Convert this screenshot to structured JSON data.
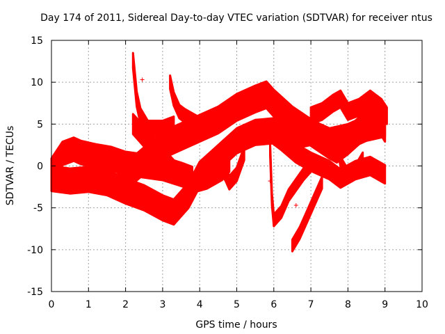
{
  "chart_data": {
    "type": "scatter",
    "title": "Day 174 of 2011, Sidereal Day-to-day VTEC variation (SDTVAR) for receiver ntus",
    "xlabel": "GPS time / hours",
    "ylabel": "SDTVAR / TECUs",
    "xlim": [
      0,
      10
    ],
    "ylim": [
      -15,
      15
    ],
    "xticks": [
      "0",
      "1",
      "2",
      "3",
      "4",
      "5",
      "6",
      "7",
      "8",
      "9",
      "10"
    ],
    "yticks": [
      "15",
      "10",
      "5",
      "0",
      "-5",
      "-10",
      "-15"
    ],
    "grid": true,
    "marker": "+",
    "colors": {
      "series": "#ff0000",
      "axis": "#000000",
      "grid": "#a0a0a0"
    },
    "series": [
      {
        "name": "",
        "bands": [
          {
            "points": [
              [
                0,
                -0.5
              ],
              [
                0.3,
                1.5
              ],
              [
                0.6,
                2.0
              ],
              [
                0.8,
                1.6
              ],
              [
                1.2,
                1.2
              ],
              [
                1.6,
                0.9
              ],
              [
                2.0,
                0.3
              ],
              [
                2.5,
                0.0
              ],
              [
                3.0,
                -0.3
              ],
              [
                3.5,
                -1.0
              ],
              [
                3.8,
                -1.5
              ]
            ],
            "half": 1.4
          },
          {
            "points": [
              [
                0,
                -1.5
              ],
              [
                0.5,
                -1.8
              ],
              [
                1.0,
                -1.6
              ],
              [
                1.5,
                -2.0
              ],
              [
                2.0,
                -3.0
              ],
              [
                2.5,
                -3.8
              ],
              [
                3.0,
                -5.0
              ],
              [
                3.3,
                -5.5
              ],
              [
                3.7,
                -3.5
              ],
              [
                4.0,
                -1.0
              ],
              [
                4.5,
                1.0
              ],
              [
                5.0,
                3.0
              ],
              [
                5.5,
                4.0
              ],
              [
                6.0,
                4.2
              ],
              [
                6.5,
                3.5
              ],
              [
                7.0,
                4.0
              ],
              [
                7.5,
                3.0
              ],
              [
                8.0,
                3.5
              ],
              [
                8.5,
                4.5
              ],
              [
                9.0,
                5.0
              ]
            ],
            "half": 1.5
          },
          {
            "points": [
              [
                1.8,
                -1.5
              ],
              [
                2.2,
                -0.5
              ],
              [
                2.6,
                1.0
              ],
              [
                3.0,
                2.5
              ],
              [
                3.5,
                3.5
              ],
              [
                4.0,
                4.5
              ],
              [
                4.5,
                5.5
              ],
              [
                5.0,
                7.0
              ],
              [
                5.5,
                8.0
              ],
              [
                5.8,
                8.5
              ],
              [
                6.0,
                7.5
              ],
              [
                6.5,
                5.5
              ],
              [
                7.0,
                4.0
              ],
              [
                7.5,
                2.5
              ],
              [
                7.7,
                2.0
              ],
              [
                8.0,
                3.0
              ],
              [
                8.5,
                5.0
              ],
              [
                8.8,
                6.0
              ],
              [
                9.0,
                4.5
              ]
            ],
            "half": 1.6
          },
          {
            "points": [
              [
                2.2,
                5.0
              ],
              [
                2.6,
                3.0
              ],
              [
                3.0,
                1.0
              ],
              [
                3.3,
                -0.5
              ],
              [
                3.8,
                -2.0
              ],
              [
                4.2,
                -1.5
              ],
              [
                4.6,
                -0.5
              ],
              [
                4.8,
                0.5
              ]
            ],
            "half": 1.2
          },
          {
            "points": [
              [
                2.2,
                12.6
              ],
              [
                2.3,
                8.0
              ],
              [
                2.4,
                6.0
              ],
              [
                2.6,
                4.5
              ],
              [
                3.0,
                4.5
              ],
              [
                3.3,
                5.0
              ]
            ],
            "half": 0.9
          },
          {
            "points": [
              [
                3.2,
                10.0
              ],
              [
                3.3,
                8.0
              ],
              [
                3.45,
                6.5
              ],
              [
                3.6,
                6.0
              ],
              [
                3.8,
                5.5
              ],
              [
                4.0,
                5.0
              ]
            ],
            "half": 0.8
          },
          {
            "points": [
              [
                4.5,
                0.5
              ],
              [
                4.7,
                -1.0
              ],
              [
                4.8,
                -2.0
              ],
              [
                5.0,
                -1.0
              ],
              [
                5.2,
                1.5
              ]
            ],
            "half": 0.8
          },
          {
            "points": [
              [
                5.9,
                2.0
              ],
              [
                5.95,
                -4.0
              ],
              [
                6.0,
                -6.5
              ],
              [
                6.2,
                -5.5
              ],
              [
                6.4,
                -3.5
              ],
              [
                6.8,
                -1.0
              ],
              [
                7.0,
                0.0
              ]
            ],
            "half": 0.7
          },
          {
            "points": [
              [
                6.5,
                -9.5
              ],
              [
                6.7,
                -8.0
              ],
              [
                6.9,
                -6.0
              ],
              [
                7.1,
                -4.0
              ],
              [
                7.3,
                -2.0
              ]
            ],
            "half": 0.7
          },
          {
            "points": [
              [
                5.9,
                4.0
              ],
              [
                6.2,
                3.0
              ],
              [
                6.6,
                1.5
              ],
              [
                7.0,
                0.5
              ],
              [
                7.5,
                -0.5
              ],
              [
                7.8,
                -1.5
              ],
              [
                8.2,
                -0.5
              ],
              [
                8.6,
                0.0
              ],
              [
                9.0,
                -1.0
              ]
            ],
            "half": 1.1
          },
          {
            "points": [
              [
                7.0,
                6.0
              ],
              [
                7.3,
                6.5
              ],
              [
                7.6,
                7.5
              ],
              [
                7.8,
                8.0
              ],
              [
                8.0,
                6.5
              ],
              [
                8.3,
                7.0
              ],
              [
                8.6,
                8.0
              ],
              [
                8.9,
                7.0
              ],
              [
                9.05,
                6.0
              ]
            ],
            "half": 1.0
          },
          {
            "points": [
              [
                7.7,
                3.0
              ],
              [
                7.8,
                0.5
              ],
              [
                8.0,
                -1.0
              ],
              [
                8.2,
                -0.5
              ],
              [
                8.4,
                1.0
              ]
            ],
            "half": 0.6
          }
        ],
        "outliers": [
          [
            2.45,
            10.3
          ],
          [
            5.9,
            -1.8
          ],
          [
            6.6,
            -4.7
          ],
          [
            7.72,
            8.4
          ]
        ]
      }
    ]
  }
}
